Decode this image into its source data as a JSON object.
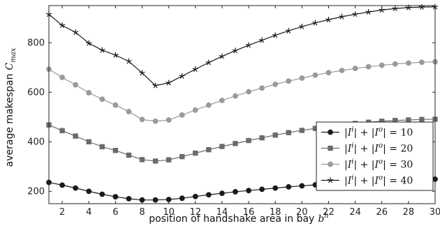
{
  "chart_data": {
    "type": "line",
    "xlabel": "position of handshake area in bay",
    "xlabel_symbol": "b",
    "xlabel_symbol_sup": "h",
    "ylabel": "average makespan",
    "ylabel_symbol": "C",
    "ylabel_symbol_sub": "max",
    "xlim": [
      1,
      30
    ],
    "ylim": [
      150,
      950
    ],
    "xticks": [
      2,
      4,
      6,
      8,
      10,
      12,
      14,
      16,
      18,
      20,
      22,
      24,
      26,
      28,
      30
    ],
    "yticks": [
      200,
      400,
      600,
      800
    ],
    "grid": false,
    "legend_position": "lower-right",
    "x": [
      1,
      2,
      3,
      4,
      5,
      6,
      7,
      8,
      9,
      10,
      11,
      12,
      13,
      14,
      15,
      16,
      17,
      18,
      19,
      20,
      21,
      22,
      23,
      24,
      25,
      26,
      27,
      28,
      29,
      30
    ],
    "series": [
      {
        "name": "|I^i| + |I^o| = 10",
        "legend_parts": [
          "|I",
          "i",
          "| + |I",
          "o",
          "| = 10"
        ],
        "marker": "circle",
        "color": "#1a1a1a",
        "values": [
          236,
          225,
          213,
          200,
          188,
          178,
          170,
          165,
          165,
          167,
          172,
          179,
          186,
          192,
          198,
          203,
          208,
          213,
          218,
          222,
          226,
          230,
          234,
          237,
          240,
          243,
          245,
          247,
          249,
          249
        ]
      },
      {
        "name": "|I^i| + |I^o| = 20",
        "legend_parts": [
          "|I",
          "i",
          "| + |I",
          "o",
          "| = 20"
        ],
        "marker": "square",
        "color": "#6b6b6b",
        "values": [
          468,
          445,
          423,
          400,
          380,
          365,
          346,
          328,
          322,
          327,
          340,
          354,
          368,
          381,
          393,
          405,
          416,
          427,
          437,
          446,
          454,
          462,
          469,
          474,
          479,
          483,
          486,
          488,
          490,
          491
        ]
      },
      {
        "name": "|I^i| + |I^o| = 30",
        "legend_parts": [
          "|I",
          "i",
          "| + |I",
          "o",
          "| = 30"
        ],
        "marker": "circle",
        "color": "#9a9a9a",
        "values": [
          693,
          660,
          630,
          598,
          572,
          548,
          522,
          490,
          483,
          488,
          508,
          528,
          548,
          567,
          585,
          602,
          617,
          632,
          645,
          657,
          669,
          679,
          688,
          696,
          703,
          709,
          714,
          718,
          721,
          723
        ]
      },
      {
        "name": "|I^i| + |I^o| = 40",
        "legend_parts": [
          "|I",
          "i",
          "| + |I",
          "o",
          "| = 40"
        ],
        "marker": "star",
        "color": "#1a1a1a",
        "values": [
          915,
          870,
          842,
          798,
          770,
          750,
          725,
          678,
          627,
          638,
          665,
          693,
          720,
          745,
          768,
          790,
          810,
          830,
          848,
          865,
          880,
          893,
          905,
          915,
          924,
          932,
          938,
          942,
          944,
          945
        ]
      }
    ]
  }
}
